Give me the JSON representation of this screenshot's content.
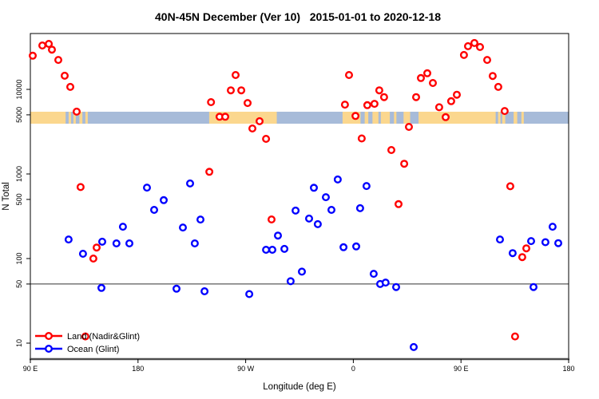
{
  "chart_data": {
    "type": "scatter",
    "title": "40N-45N December (Ver 10)   2015-01-01 to 2020-12-18",
    "xlabel": "Longitude (deg E)",
    "ylabel": "N Total",
    "y_scale": "log10",
    "ylim": [
      6.5,
      46000
    ],
    "x_axis_span_deg": [
      90,
      540
    ],
    "x_ticks": [
      {
        "pos": 90,
        "label": "90 E"
      },
      {
        "pos": 180,
        "label": "180"
      },
      {
        "pos": 270,
        "label": "90 W"
      },
      {
        "pos": 360,
        "label": "0"
      },
      {
        "pos": 450,
        "label": "90 E"
      },
      {
        "pos": 540,
        "label": "180"
      }
    ],
    "y_ticks": [
      {
        "value": 10,
        "label": "10"
      },
      {
        "value": 50,
        "label": "50"
      },
      {
        "value": 100,
        "label": "100"
      },
      {
        "value": 500,
        "label": "500"
      },
      {
        "value": 1000,
        "label": "1000"
      },
      {
        "value": 5000,
        "label": "5000"
      },
      {
        "value": 10000,
        "label": "10000"
      }
    ],
    "reference_line_y": 50,
    "grid": "off",
    "legend": {
      "position": "bottom-left",
      "entries": [
        {
          "label": "Land (Nadir&Glint)",
          "color": "#FF0000"
        },
        {
          "label": "Ocean (Glint)",
          "color": "#0000FF"
        }
      ]
    },
    "map_band": {
      "description": "land/ocean strip along 40N-45N",
      "land_color": "#FBD78E",
      "ocean_color": "#A7BBD9",
      "land_segments_deg": [
        [
          90,
          119.5
        ],
        [
          122,
          124
        ],
        [
          126,
          128
        ],
        [
          131,
          133.5
        ],
        [
          136,
          138
        ],
        [
          239.5,
          296
        ],
        [
          351,
          366
        ],
        [
          369.5,
          372.5
        ],
        [
          376,
          381
        ],
        [
          383,
          390.5
        ],
        [
          394,
          396
        ],
        [
          402,
          407.5
        ],
        [
          414.5,
          479
        ],
        [
          481,
          483
        ],
        [
          484.5,
          487
        ],
        [
          494,
          497
        ],
        [
          500.5,
          502.5
        ]
      ]
    },
    "series": [
      {
        "name": "Land (Nadir&Glint)",
        "color": "#FF0000",
        "points": [
          [
            92,
            25000
          ],
          [
            100,
            33000
          ],
          [
            105.4,
            34500
          ],
          [
            108,
            29500
          ],
          [
            113.4,
            22300
          ],
          [
            118.7,
            14500
          ],
          [
            123.4,
            10700
          ],
          [
            128.7,
            5450
          ],
          [
            132,
            700
          ],
          [
            136,
            12
          ],
          [
            142.7,
            100
          ],
          [
            145.4,
            135
          ],
          [
            239.6,
            1060
          ],
          [
            241,
            7060
          ],
          [
            248.2,
            4750
          ],
          [
            252.9,
            4750
          ],
          [
            257.6,
            9750
          ],
          [
            261.6,
            14800
          ],
          [
            266.3,
            9750
          ],
          [
            271.6,
            6900
          ],
          [
            275.6,
            3450
          ],
          [
            281.6,
            4200
          ],
          [
            287,
            2600
          ],
          [
            291.6,
            290
          ],
          [
            353,
            6600
          ],
          [
            356.4,
            14800
          ],
          [
            361.8,
            4850
          ],
          [
            367,
            2630
          ],
          [
            371.7,
            6500
          ],
          [
            377.7,
            6750
          ],
          [
            381.7,
            9750
          ],
          [
            385.7,
            8100
          ],
          [
            391.8,
            1920
          ],
          [
            397.8,
            440
          ],
          [
            402.5,
            1320
          ],
          [
            406.5,
            3600
          ],
          [
            412.5,
            8100
          ],
          [
            416.5,
            13600
          ],
          [
            421.8,
            15500
          ],
          [
            426.5,
            11900
          ],
          [
            431.8,
            6150
          ],
          [
            437.2,
            4700
          ],
          [
            441.8,
            7250
          ],
          [
            446.5,
            8650
          ],
          [
            452.5,
            25500
          ],
          [
            455.9,
            32400
          ],
          [
            461.2,
            35300
          ],
          [
            465.9,
            31700
          ],
          [
            471.9,
            22300
          ],
          [
            476.5,
            14400
          ],
          [
            481.2,
            10700
          ],
          [
            486.5,
            5550
          ],
          [
            491.2,
            715
          ],
          [
            495.2,
            12
          ],
          [
            501.2,
            104
          ],
          [
            504.6,
            132
          ]
        ]
      },
      {
        "name": "Ocean (Glint)",
        "color": "#0000FF",
        "points": [
          [
            122,
            168
          ],
          [
            134,
            114
          ],
          [
            149.4,
            45
          ],
          [
            150.1,
            158
          ],
          [
            162,
            151
          ],
          [
            167.4,
            238
          ],
          [
            172.8,
            151
          ],
          [
            187.5,
            690
          ],
          [
            193.5,
            376
          ],
          [
            201.5,
            490
          ],
          [
            212.2,
            44
          ],
          [
            217.5,
            233
          ],
          [
            223.5,
            772
          ],
          [
            227.5,
            151
          ],
          [
            232.2,
            289
          ],
          [
            235.6,
            41
          ],
          [
            273,
            38
          ],
          [
            287,
            127
          ],
          [
            292.3,
            127
          ],
          [
            297,
            187
          ],
          [
            302.4,
            130
          ],
          [
            307.6,
            54
          ],
          [
            311.7,
            369
          ],
          [
            317,
            70
          ],
          [
            323,
            297
          ],
          [
            327,
            687
          ],
          [
            330.3,
            255
          ],
          [
            337,
            532
          ],
          [
            341.7,
            376
          ],
          [
            347,
            860
          ],
          [
            351.8,
            136
          ],
          [
            362.4,
            139
          ],
          [
            365.7,
            394
          ],
          [
            371,
            720
          ],
          [
            377,
            66
          ],
          [
            382.4,
            50
          ],
          [
            387,
            52
          ],
          [
            395.8,
            46
          ],
          [
            410.5,
            9
          ],
          [
            482.6,
            168
          ],
          [
            493.2,
            116
          ],
          [
            508.6,
            161
          ],
          [
            510.6,
            46
          ],
          [
            520.6,
            156
          ],
          [
            526.6,
            238
          ],
          [
            531.3,
            152
          ]
        ]
      }
    ]
  }
}
